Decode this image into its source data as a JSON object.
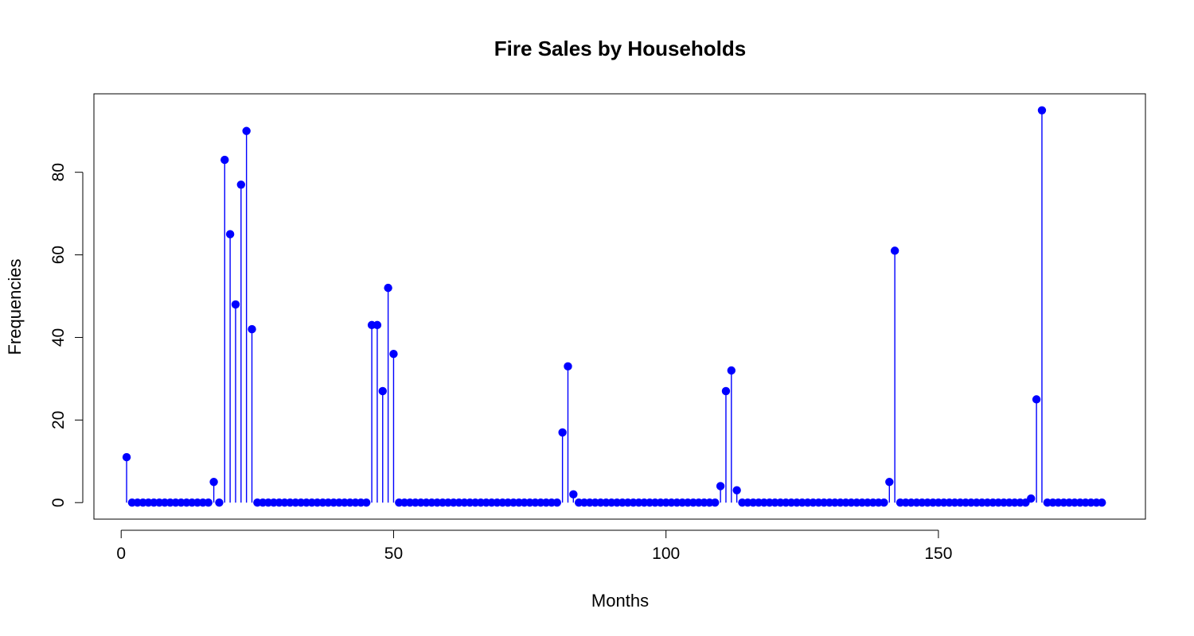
{
  "chart_data": {
    "type": "scatter",
    "style": "stem",
    "title": "Fire Sales by Households",
    "xlabel": "Months",
    "ylabel": "Frequencies",
    "xlim": [
      -5,
      188
    ],
    "ylim": [
      -4,
      99
    ],
    "x_ticks": [
      0,
      50,
      100,
      150
    ],
    "y_ticks": [
      0,
      20,
      40,
      60,
      80
    ],
    "grid": false,
    "legend": "none",
    "color": "#0000ff",
    "nonzero_points": [
      {
        "x": 1,
        "y": 11
      },
      {
        "x": 17,
        "y": 5
      },
      {
        "x": 19,
        "y": 83
      },
      {
        "x": 20,
        "y": 65
      },
      {
        "x": 21,
        "y": 48
      },
      {
        "x": 22,
        "y": 77
      },
      {
        "x": 23,
        "y": 90
      },
      {
        "x": 24,
        "y": 42
      },
      {
        "x": 46,
        "y": 43
      },
      {
        "x": 47,
        "y": 43
      },
      {
        "x": 48,
        "y": 27
      },
      {
        "x": 49,
        "y": 52
      },
      {
        "x": 50,
        "y": 36
      },
      {
        "x": 81,
        "y": 17
      },
      {
        "x": 82,
        "y": 33
      },
      {
        "x": 83,
        "y": 2
      },
      {
        "x": 110,
        "y": 4
      },
      {
        "x": 111,
        "y": 27
      },
      {
        "x": 112,
        "y": 32
      },
      {
        "x": 113,
        "y": 3
      },
      {
        "x": 141,
        "y": 5
      },
      {
        "x": 142,
        "y": 61
      },
      {
        "x": 167,
        "y": 1
      },
      {
        "x": 168,
        "y": 25
      },
      {
        "x": 169,
        "y": 95
      }
    ],
    "x_range_all_points": [
      1,
      180
    ],
    "zero_value_elsewhere": 0
  }
}
